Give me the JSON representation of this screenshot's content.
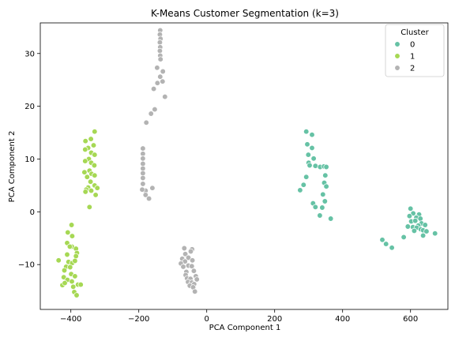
{
  "chart_data": {
    "type": "scatter",
    "title": "K-Means Customer Segmentation (k=3)",
    "xlabel": "PCA Component 1",
    "ylabel": "PCA Component 2",
    "xlim": [
      -490,
      710
    ],
    "ylim": [
      -18.5,
      35.8
    ],
    "xticks": [
      -400,
      -200,
      0,
      200,
      400,
      600
    ],
    "xtick_labels": [
      "−400",
      "−200",
      "0",
      "200",
      "400",
      "600"
    ],
    "yticks": [
      -10,
      0,
      10,
      20,
      30
    ],
    "ytick_labels": [
      "−10",
      "0",
      "10",
      "20",
      "30"
    ],
    "grid": false,
    "legend": {
      "title": "Cluster",
      "placement": "top-right"
    },
    "series": [
      {
        "name": "0",
        "color": "#66c2a5",
        "points": [
          [
            293,
            15.2
          ],
          [
            310,
            14.6
          ],
          [
            296,
            12.8
          ],
          [
            310,
            12.1
          ],
          [
            299,
            10.8
          ],
          [
            315,
            10.1
          ],
          [
            300,
            9.3
          ],
          [
            303,
            8.8
          ],
          [
            320,
            8.7
          ],
          [
            334,
            8.5
          ],
          [
            345,
            8.6
          ],
          [
            352,
            8.5
          ],
          [
            349,
            6.9
          ],
          [
            293,
            6.6
          ],
          [
            346,
            5.5
          ],
          [
            285,
            5.1
          ],
          [
            352,
            4.8
          ],
          [
            275,
            4.1
          ],
          [
            342,
            3.3
          ],
          [
            348,
            2.0
          ],
          [
            313,
            1.6
          ],
          [
            320,
            0.9
          ],
          [
            340,
            0.8
          ],
          [
            333,
            -0.7
          ],
          [
            365,
            -1.3
          ],
          [
            600,
            0.6
          ],
          [
            608,
            -0.3
          ],
          [
            625,
            -0.5
          ],
          [
            597,
            -0.8
          ],
          [
            617,
            -1.1
          ],
          [
            629,
            -1.3
          ],
          [
            602,
            -1.8
          ],
          [
            614,
            -1.7
          ],
          [
            632,
            -2.2
          ],
          [
            592,
            -2.8
          ],
          [
            623,
            -2.6
          ],
          [
            643,
            -2.5
          ],
          [
            607,
            -2.9
          ],
          [
            618,
            -3.0
          ],
          [
            630,
            -3.3
          ],
          [
            637,
            -3.5
          ],
          [
            611,
            -3.6
          ],
          [
            647,
            -3.7
          ],
          [
            672,
            -4.1
          ],
          [
            637,
            -4.5
          ],
          [
            580,
            -4.8
          ],
          [
            517,
            -5.3
          ],
          [
            528,
            -6.1
          ],
          [
            545,
            -6.8
          ]
        ]
      },
      {
        "name": "1",
        "color": "#a6d854",
        "points": [
          [
            -330,
            15.2
          ],
          [
            -357,
            13.4
          ],
          [
            -341,
            13.8
          ],
          [
            -333,
            12.6
          ],
          [
            -349,
            12.1
          ],
          [
            -358,
            11.8
          ],
          [
            -340,
            11.2
          ],
          [
            -330,
            10.8
          ],
          [
            -347,
            10.0
          ],
          [
            -358,
            9.6
          ],
          [
            -340,
            9.3
          ],
          [
            -331,
            8.8
          ],
          [
            -345,
            7.8
          ],
          [
            -360,
            7.5
          ],
          [
            -339,
            7.2
          ],
          [
            -330,
            6.9
          ],
          [
            -352,
            6.6
          ],
          [
            -342,
            5.7
          ],
          [
            -330,
            5.0
          ],
          [
            -349,
            4.6
          ],
          [
            -355,
            4.2
          ],
          [
            -322,
            4.5
          ],
          [
            -340,
            4.0
          ],
          [
            -357,
            3.8
          ],
          [
            -327,
            3.2
          ],
          [
            -345,
            0.9
          ],
          [
            -398,
            -2.5
          ],
          [
            -409,
            -3.9
          ],
          [
            -396,
            -4.6
          ],
          [
            -411,
            -5.9
          ],
          [
            -397,
            -6.6
          ],
          [
            -403,
            -6.6
          ],
          [
            -385,
            -7.0
          ],
          [
            -382,
            -7.8
          ],
          [
            -411,
            -8.1
          ],
          [
            -385,
            -8.4
          ],
          [
            -436,
            -9.2
          ],
          [
            -407,
            -9.5
          ],
          [
            -396,
            -9.7
          ],
          [
            -388,
            -9.3
          ],
          [
            -414,
            -10.4
          ],
          [
            -402,
            -10.5
          ],
          [
            -419,
            -11.1
          ],
          [
            -399,
            -11.8
          ],
          [
            -421,
            -12.4
          ],
          [
            -388,
            -12.2
          ],
          [
            -410,
            -12.9
          ],
          [
            -397,
            -13.2
          ],
          [
            -379,
            -13.8
          ],
          [
            -425,
            -13.9
          ],
          [
            -393,
            -14.2
          ],
          [
            -418,
            -13.5
          ],
          [
            -371,
            -13.8
          ],
          [
            -390,
            -15.2
          ],
          [
            -383,
            -15.8
          ]
        ]
      },
      {
        "name": "2",
        "color": "#b3b3b3",
        "points": [
          [
            -137,
            34.4
          ],
          [
            -138,
            33.6
          ],
          [
            -136,
            32.8
          ],
          [
            -138,
            32.1
          ],
          [
            -137,
            31.2
          ],
          [
            -138,
            30.5
          ],
          [
            -137,
            29.6
          ],
          [
            -136,
            28.9
          ],
          [
            -146,
            27.3
          ],
          [
            -129,
            26.6
          ],
          [
            -137,
            25.6
          ],
          [
            -145,
            24.4
          ],
          [
            -130,
            24.7
          ],
          [
            -156,
            23.3
          ],
          [
            -123,
            21.8
          ],
          [
            -153,
            19.4
          ],
          [
            -164,
            18.6
          ],
          [
            -178,
            16.9
          ],
          [
            -188,
            12.0
          ],
          [
            -188,
            11.0
          ],
          [
            -188,
            10.1
          ],
          [
            -188,
            9.1
          ],
          [
            -188,
            8.2
          ],
          [
            -188,
            7.3
          ],
          [
            -188,
            6.4
          ],
          [
            -188,
            5.3
          ],
          [
            -160,
            4.5
          ],
          [
            -180,
            4.0
          ],
          [
            -190,
            4.2
          ],
          [
            -180,
            3.2
          ],
          [
            -170,
            2.5
          ],
          [
            -66,
            -6.9
          ],
          [
            -43,
            -7.1
          ],
          [
            -63,
            -8.0
          ],
          [
            -47,
            -7.5
          ],
          [
            -72,
            -8.9
          ],
          [
            -54,
            -8.7
          ],
          [
            -64,
            -9.4
          ],
          [
            -42,
            -9.2
          ],
          [
            -76,
            -9.8
          ],
          [
            -54,
            -10.2
          ],
          [
            -69,
            -10.4
          ],
          [
            -44,
            -10.3
          ],
          [
            -60,
            -11.4
          ],
          [
            -38,
            -11.2
          ],
          [
            -62,
            -12.0
          ],
          [
            -32,
            -12.2
          ],
          [
            -58,
            -12.6
          ],
          [
            -48,
            -12.7
          ],
          [
            -29,
            -12.8
          ],
          [
            -55,
            -13.3
          ],
          [
            -44,
            -13.4
          ],
          [
            -37,
            -13.7
          ],
          [
            -50,
            -14.0
          ],
          [
            -40,
            -14.3
          ],
          [
            -35,
            -15.1
          ]
        ]
      }
    ]
  }
}
